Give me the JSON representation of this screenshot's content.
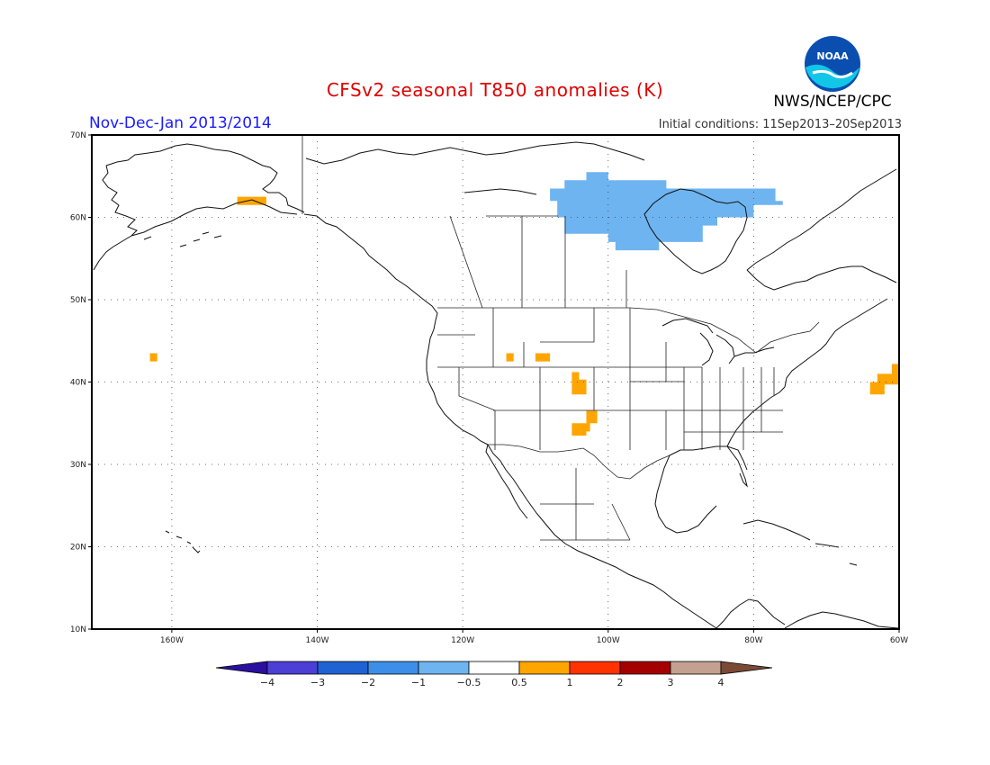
{
  "header": {
    "title": "CFSv2 seasonal T850 anomalies (K)",
    "agency": "NWS/NCEP/CPC",
    "logo_text": "NOAA",
    "period": "Nov-Dec-Jan 2013/2014",
    "initial_conditions": "Initial conditions: 11Sep2013–20Sep2013"
  },
  "map": {
    "projection": "cylindrical equidistant",
    "lon_range": [
      -171,
      -60
    ],
    "lat_range": [
      10,
      70
    ],
    "lat_ticks": [
      {
        "value": 70,
        "label": "70N"
      },
      {
        "value": 60,
        "label": "60N"
      },
      {
        "value": 50,
        "label": "50N"
      },
      {
        "value": 40,
        "label": "40N"
      },
      {
        "value": 30,
        "label": "30N"
      },
      {
        "value": 20,
        "label": "20N"
      },
      {
        "value": 10,
        "label": "10N"
      }
    ],
    "lon_ticks": [
      {
        "value": -160,
        "label": "160W"
      },
      {
        "value": -140,
        "label": "140W"
      },
      {
        "value": -120,
        "label": "120W"
      },
      {
        "value": -100,
        "label": "100W"
      },
      {
        "value": -80,
        "label": "80W"
      },
      {
        "value": -60,
        "label": "60W"
      }
    ],
    "grid": true,
    "anomaly_regions": [
      {
        "name": "hudson-bay-cold",
        "category": "-1 to -0.5",
        "color": "#6eb4f0",
        "polygon": [
          [
            -103,
            65.5
          ],
          [
            -100,
            65.5
          ],
          [
            -100,
            64.5
          ],
          [
            -92,
            64.5
          ],
          [
            -92,
            63.5
          ],
          [
            -77,
            63.5
          ],
          [
            -77,
            62
          ],
          [
            -76,
            62
          ],
          [
            -76,
            61.5
          ],
          [
            -80,
            61.5
          ],
          [
            -80,
            60
          ],
          [
            -85,
            60
          ],
          [
            -85,
            59
          ],
          [
            -87,
            59
          ],
          [
            -87,
            57
          ],
          [
            -93,
            57
          ],
          [
            -93,
            56
          ],
          [
            -99,
            56
          ],
          [
            -99,
            57
          ],
          [
            -100,
            57
          ],
          [
            -100,
            58
          ],
          [
            -106,
            58
          ],
          [
            -106,
            60
          ],
          [
            -107,
            60
          ],
          [
            -107,
            62
          ],
          [
            -108,
            62
          ],
          [
            -108,
            63.5
          ],
          [
            -106,
            63.5
          ],
          [
            -106,
            64.5
          ],
          [
            -103,
            64.5
          ]
        ]
      },
      {
        "name": "alaska-warm",
        "category": "0.5 to 1",
        "color": "#ffa500",
        "polygon": [
          [
            -151,
            62.5
          ],
          [
            -147,
            62.5
          ],
          [
            -147,
            61.5
          ],
          [
            -151,
            61.5
          ]
        ]
      },
      {
        "name": "pacific-warm",
        "category": "0.5 to 1",
        "color": "#ffa500",
        "polygon": [
          [
            -163,
            43.5
          ],
          [
            -162,
            43.5
          ],
          [
            -162,
            42.5
          ],
          [
            -163,
            42.5
          ]
        ]
      },
      {
        "name": "idaho-warm",
        "category": "0.5 to 1",
        "color": "#ffa500",
        "polygon": [
          [
            -114,
            43.5
          ],
          [
            -113,
            43.5
          ],
          [
            -113,
            42.5
          ],
          [
            -114,
            42.5
          ]
        ]
      },
      {
        "name": "wyoming-warm",
        "category": "0.5 to 1",
        "color": "#ffa500",
        "polygon": [
          [
            -110,
            43.5
          ],
          [
            -108,
            43.5
          ],
          [
            -108,
            42.5
          ],
          [
            -110,
            42.5
          ]
        ]
      },
      {
        "name": "colorado-warm",
        "category": "0.5 to 1",
        "color": "#ffa500",
        "polygon": [
          [
            -105,
            41.2
          ],
          [
            -104,
            41.2
          ],
          [
            -104,
            40.3
          ],
          [
            -103,
            40.3
          ],
          [
            -103,
            38.5
          ],
          [
            -105,
            38.5
          ]
        ]
      },
      {
        "name": "new-mexico-warm",
        "category": "0.5 to 1",
        "color": "#ffa500",
        "polygon": [
          [
            -103,
            36.5
          ],
          [
            -101.5,
            36.5
          ],
          [
            -101.5,
            35
          ],
          [
            -102.5,
            35
          ],
          [
            -102.5,
            34
          ],
          [
            -103,
            34
          ],
          [
            -103,
            33.5
          ],
          [
            -105,
            33.5
          ],
          [
            -105,
            35
          ],
          [
            -103,
            35
          ]
        ]
      },
      {
        "name": "atlantic-warm",
        "category": "0.5 to 1",
        "color": "#ffa500",
        "polygon": [
          [
            -61,
            42.2
          ],
          [
            -60,
            42.2
          ],
          [
            -60,
            39.7
          ],
          [
            -62,
            39.7
          ],
          [
            -62,
            38.5
          ],
          [
            -64,
            38.5
          ],
          [
            -64,
            40
          ],
          [
            -63,
            40
          ],
          [
            -63,
            41
          ],
          [
            -61,
            41
          ]
        ]
      }
    ]
  },
  "legend": {
    "bins": [
      {
        "color": "#2b0fa0"
      },
      {
        "color": "#4b3fd6"
      },
      {
        "color": "#1f63d2"
      },
      {
        "color": "#3d8ee8"
      },
      {
        "color": "#6eb4f0"
      },
      {
        "color": "#ffffff"
      },
      {
        "color": "#ffa500"
      },
      {
        "color": "#ff3300"
      },
      {
        "color": "#a50000"
      },
      {
        "color": "#c4a090"
      },
      {
        "color": "#7a4a35"
      }
    ],
    "labels": [
      "−4",
      "−3",
      "−2",
      "−1",
      "−0.5",
      "0.5",
      "1",
      "2",
      "3",
      "4"
    ]
  }
}
